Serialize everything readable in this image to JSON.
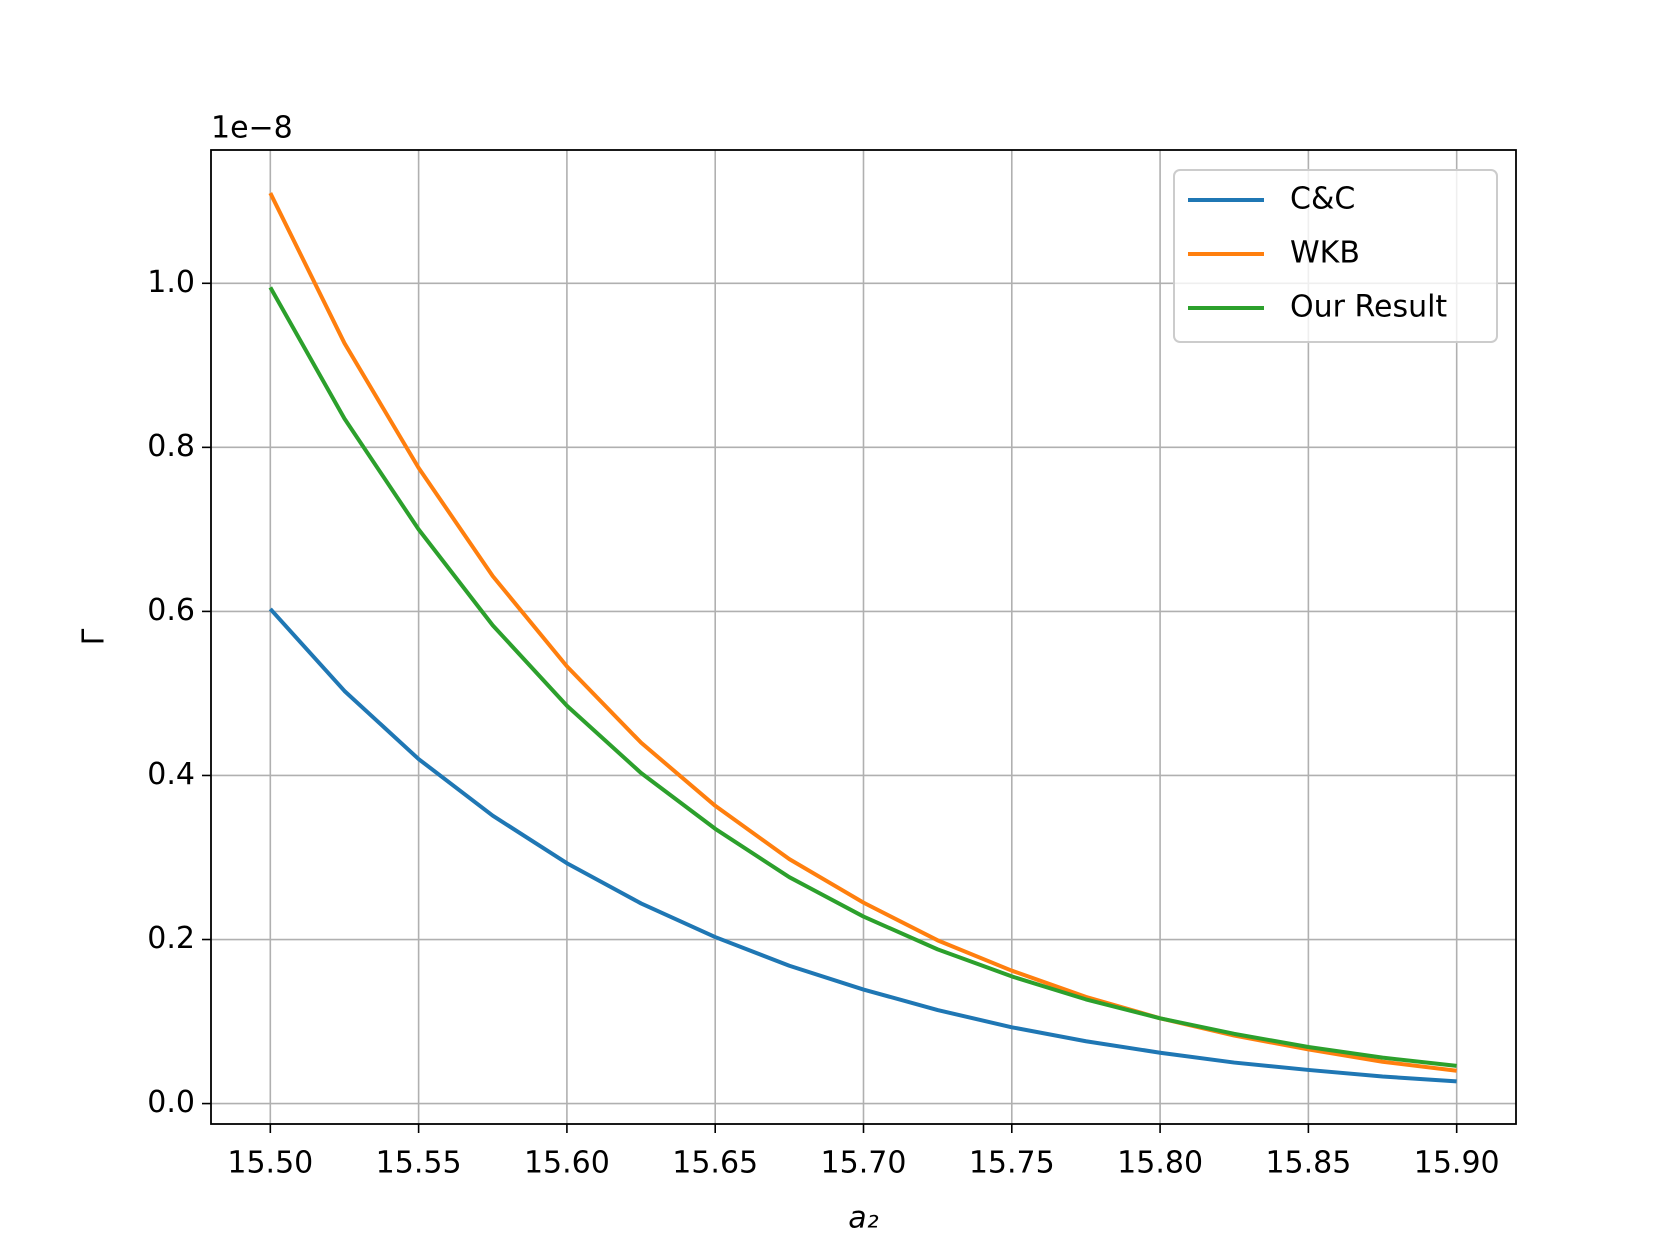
{
  "chart_data": {
    "type": "line",
    "x_label": "a₂",
    "y_label": "Γ",
    "y_offset_label": "1e−8",
    "x": [
      15.5,
      15.525,
      15.55,
      15.575,
      15.6,
      15.625,
      15.65,
      15.675,
      15.7,
      15.725,
      15.75,
      15.775,
      15.8,
      15.825,
      15.85,
      15.875,
      15.9
    ],
    "series": [
      {
        "name": "C&C",
        "color": "#1f77b4",
        "values": [
          0.603,
          0.503,
          0.42,
          0.351,
          0.293,
          0.244,
          0.203,
          0.168,
          0.139,
          0.114,
          0.093,
          0.076,
          0.062,
          0.05,
          0.041,
          0.033,
          0.027
        ]
      },
      {
        "name": "WKB",
        "color": "#ff7f0e",
        "values": [
          1.11,
          0.927,
          0.775,
          0.643,
          0.533,
          0.44,
          0.363,
          0.298,
          0.245,
          0.199,
          0.162,
          0.13,
          0.104,
          0.083,
          0.066,
          0.051,
          0.04
        ]
      },
      {
        "name": "Our Result",
        "color": "#2ca02c",
        "values": [
          0.995,
          0.835,
          0.7,
          0.583,
          0.485,
          0.403,
          0.335,
          0.276,
          0.228,
          0.188,
          0.155,
          0.127,
          0.104,
          0.085,
          0.069,
          0.056,
          0.046
        ]
      }
    ],
    "xlim": [
      15.48,
      15.92
    ],
    "xticks": [
      {
        "value": 15.5,
        "label": "15.50"
      },
      {
        "value": 15.55,
        "label": "15.55"
      },
      {
        "value": 15.6,
        "label": "15.60"
      },
      {
        "value": 15.65,
        "label": "15.65"
      },
      {
        "value": 15.7,
        "label": "15.70"
      },
      {
        "value": 15.75,
        "label": "15.75"
      },
      {
        "value": 15.8,
        "label": "15.80"
      },
      {
        "value": 15.85,
        "label": "15.85"
      },
      {
        "value": 15.9,
        "label": "15.90"
      }
    ],
    "ylim": [
      -0.0249,
      1.1625
    ],
    "yticks": [
      {
        "value": 0,
        "label": "0.0"
      },
      0.2,
      0.4,
      0.6,
      0.8,
      {
        "value": 1,
        "label": "1.0"
      }
    ],
    "grid": true,
    "legend": "upper right"
  }
}
